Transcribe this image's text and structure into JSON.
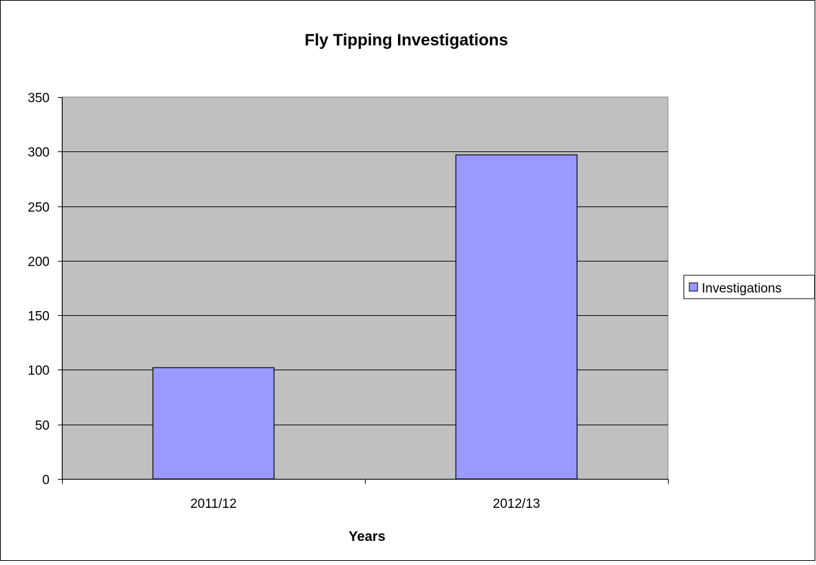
{
  "chart_data": {
    "type": "bar",
    "title": "Fly Tipping Investigations",
    "xlabel": "Years",
    "ylabel": "",
    "categories": [
      "2011/12",
      "2012/13"
    ],
    "series": [
      {
        "name": "Investigations",
        "values": [
          102,
          297
        ],
        "color": "#9999ff"
      }
    ],
    "ylim": [
      0,
      350
    ],
    "yticks": [
      0,
      50,
      100,
      150,
      200,
      250,
      300,
      350
    ],
    "grid": true,
    "legend": "right",
    "plot_background": "#c0c0c0"
  }
}
